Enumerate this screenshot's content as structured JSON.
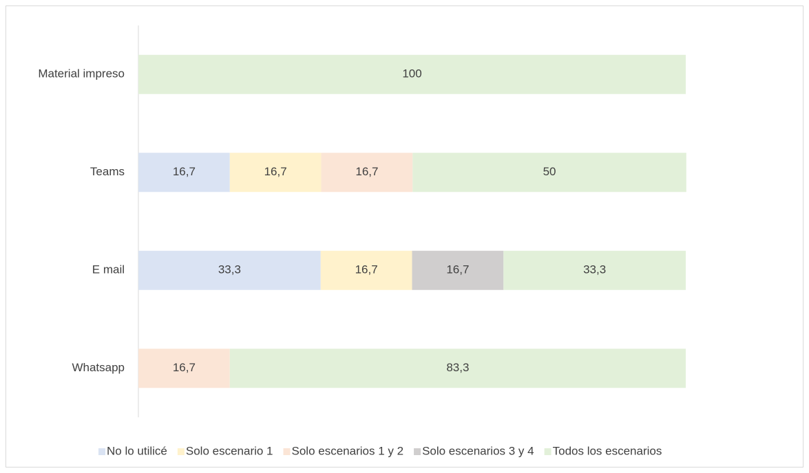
{
  "chart_data": {
    "type": "stacked-bar-horizontal",
    "categories": [
      "Material impreso",
      "Teams",
      "E mail",
      "Whatsapp"
    ],
    "xlim": [
      0,
      100
    ],
    "legend": "bottom",
    "series": [
      {
        "name": "No lo utilicé",
        "color": "#dae3f3",
        "values": [
          null,
          16.7,
          33.3,
          null
        ],
        "value_labels": [
          null,
          "16,7",
          "33,3",
          null
        ]
      },
      {
        "name": "Solo escenario 1",
        "color": "#fff2cc",
        "values": [
          null,
          16.7,
          16.7,
          null
        ],
        "value_labels": [
          null,
          "16,7",
          "16,7",
          null
        ]
      },
      {
        "name": "Solo escenarios 1 y 2",
        "color": "#fbe5d6",
        "values": [
          null,
          16.7,
          null,
          16.7
        ],
        "value_labels": [
          null,
          "16,7",
          null,
          "16,7"
        ]
      },
      {
        "name": "Solo escenarios 3 y 4",
        "color": "#d0cece",
        "values": [
          null,
          null,
          16.7,
          null
        ],
        "value_labels": [
          null,
          null,
          "16,7",
          null
        ]
      },
      {
        "name": "Todos los escenarios",
        "color": "#e2f0d9",
        "values": [
          100,
          50,
          33.3,
          83.3
        ],
        "value_labels": [
          "100",
          "50",
          "33,3",
          "83,3"
        ]
      }
    ]
  }
}
